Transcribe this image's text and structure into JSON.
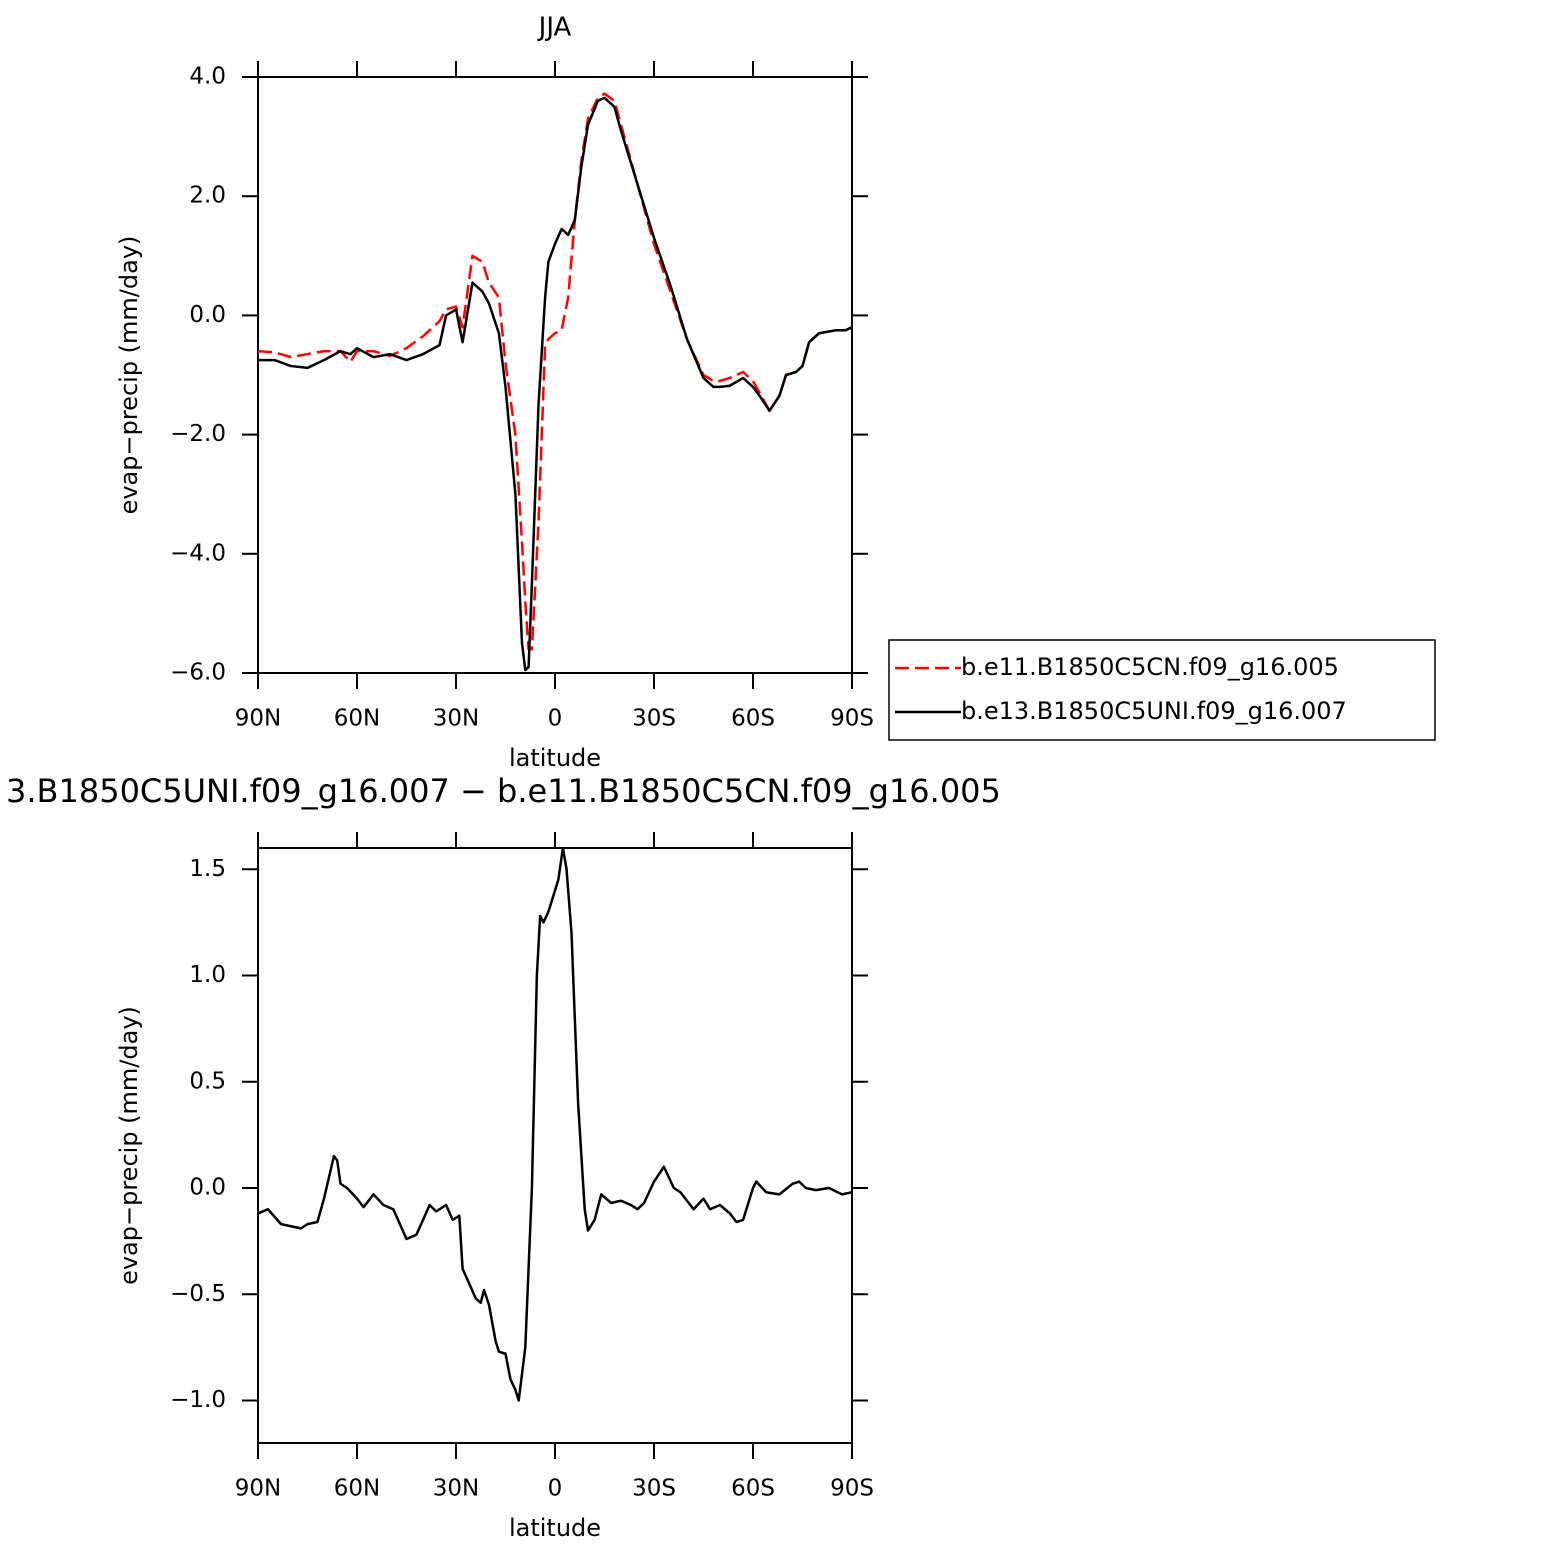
{
  "chart_data": [
    {
      "type": "line",
      "title": "JJA",
      "xlabel": "latitude",
      "ylabel": "evap−precip (mm/day)",
      "xlim": [
        90,
        -90
      ],
      "ylim": [
        -6,
        4
      ],
      "xticks": [
        {
          "value": 90,
          "label": "90N"
        },
        {
          "value": 60,
          "label": "60N"
        },
        {
          "value": 30,
          "label": "30N"
        },
        0,
        {
          "value": -30,
          "label": "30S"
        },
        {
          "value": -60,
          "label": "60S"
        },
        {
          "value": -90,
          "label": "90S"
        }
      ],
      "yticks": [
        {
          "value": 4,
          "label": "4.0"
        },
        {
          "value": 2,
          "label": "2.0"
        },
        {
          "value": 0,
          "label": "0.0"
        },
        {
          "value": -2,
          "label": "−2.0"
        },
        {
          "value": -4,
          "label": "−4.0"
        },
        {
          "value": -6,
          "label": "−6.0"
        }
      ],
      "legend": "right",
      "x": [
        90,
        85,
        80,
        75,
        70,
        65,
        62,
        60,
        55,
        50,
        45,
        40,
        35,
        33,
        30,
        28,
        25,
        22,
        20,
        17,
        15,
        12,
        10,
        9,
        8,
        7,
        5,
        3,
        2,
        0,
        -2,
        -4,
        -6,
        -8,
        -10,
        -13,
        -15,
        -18,
        -20,
        -25,
        -30,
        -35,
        -40,
        -45,
        -48,
        -50,
        -53,
        -57,
        -60,
        -62,
        -65,
        -68,
        -70,
        -73,
        -75,
        -77,
        -80,
        -85,
        -88,
        -90
      ],
      "series": [
        {
          "name": "b.e11.B1850C5CN.f09_g16.005",
          "color": "#ff0000",
          "line_style": "dashed",
          "values": [
            -0.6,
            -0.62,
            -0.7,
            -0.65,
            -0.6,
            -0.6,
            -0.78,
            -0.6,
            -0.6,
            -0.68,
            -0.55,
            -0.35,
            -0.1,
            0.1,
            0.15,
            -0.2,
            1.0,
            0.9,
            0.55,
            0.3,
            -0.8,
            -2.0,
            -3.8,
            -4.8,
            -5.6,
            -5.6,
            -3.5,
            -0.5,
            -0.4,
            -0.3,
            -0.25,
            0.3,
            1.6,
            2.6,
            3.3,
            3.65,
            3.72,
            3.6,
            3.2,
            2.2,
            1.2,
            0.4,
            -0.4,
            -1.0,
            -1.1,
            -1.1,
            -1.05,
            -0.95,
            -1.1,
            -1.3,
            -1.6,
            -1.35,
            -1.0,
            -0.95,
            -0.85,
            -0.45,
            -0.3,
            -0.25,
            -0.25,
            -0.2
          ]
        },
        {
          "name": "b.e13.B1850C5UNI.f09_g16.007",
          "color": "#000000",
          "line_style": "solid",
          "values": [
            -0.75,
            -0.75,
            -0.85,
            -0.88,
            -0.75,
            -0.6,
            -0.65,
            -0.55,
            -0.7,
            -0.65,
            -0.75,
            -0.65,
            -0.5,
            0.0,
            0.1,
            -0.45,
            0.55,
            0.4,
            0.2,
            -0.3,
            -1.2,
            -3.0,
            -5.5,
            -5.95,
            -5.9,
            -4.5,
            -1.5,
            0.3,
            0.9,
            1.2,
            1.45,
            1.35,
            1.6,
            2.5,
            3.2,
            3.6,
            3.65,
            3.5,
            3.1,
            2.2,
            1.3,
            0.5,
            -0.4,
            -1.05,
            -1.2,
            -1.2,
            -1.18,
            -1.05,
            -1.2,
            -1.35,
            -1.6,
            -1.35,
            -1.0,
            -0.95,
            -0.85,
            -0.45,
            -0.3,
            -0.25,
            -0.25,
            -0.2
          ]
        }
      ]
    },
    {
      "type": "line",
      "title": "3.B1850C5UNI.f09_g16.007 − b.e11.B1850C5CN.f09_g16.005",
      "xlabel": "latitude",
      "ylabel": "evap−precip (mm/day)",
      "xlim": [
        90,
        -90
      ],
      "ylim": [
        -1.2,
        1.6
      ],
      "xticks": [
        {
          "value": 90,
          "label": "90N"
        },
        {
          "value": 60,
          "label": "60N"
        },
        {
          "value": 30,
          "label": "30N"
        },
        0,
        {
          "value": -30,
          "label": "30S"
        },
        {
          "value": -60,
          "label": "60S"
        },
        {
          "value": -90,
          "label": "90S"
        }
      ],
      "yticks": [
        1.5,
        {
          "value": 1,
          "label": "1.0"
        },
        0.5,
        {
          "value": 0,
          "label": "0.0"
        },
        {
          "value": -0.5,
          "label": "−0.5"
        },
        {
          "value": -1,
          "label": "−1.0"
        }
      ],
      "x": [
        90,
        87,
        83,
        80,
        77,
        75,
        72,
        70,
        67,
        66,
        65,
        63,
        60,
        58,
        55,
        52,
        49,
        45,
        42,
        40,
        38,
        36,
        33,
        31,
        29,
        28,
        26,
        24,
        22.5,
        21.5,
        20,
        18,
        17,
        15,
        13.5,
        12,
        11,
        9,
        7,
        5.5,
        4.5,
        3.5,
        2,
        0,
        -1,
        -2.4,
        -3.5,
        -5,
        -7,
        -9,
        -10,
        -12,
        -14,
        -17,
        -20,
        -23,
        -25,
        -27,
        -30,
        -33,
        -36,
        -38,
        -42,
        -45,
        -47,
        -50,
        -53,
        -55,
        -57,
        -60,
        -61,
        -64,
        -68,
        -72,
        -74,
        -76,
        -79,
        -83,
        -87,
        -90
      ],
      "series": [
        {
          "name": null,
          "color": "#000000",
          "line_style": "solid",
          "values": [
            -0.12,
            -0.1,
            -0.17,
            -0.18,
            -0.19,
            -0.17,
            -0.16,
            -0.05,
            0.15,
            0.13,
            0.02,
            0.0,
            -0.05,
            -0.09,
            -0.03,
            -0.08,
            -0.1,
            -0.24,
            -0.22,
            -0.15,
            -0.08,
            -0.11,
            -0.08,
            -0.15,
            -0.13,
            -0.38,
            -0.45,
            -0.52,
            -0.54,
            -0.48,
            -0.55,
            -0.72,
            -0.77,
            -0.78,
            -0.9,
            -0.95,
            -1.0,
            -0.75,
            0.0,
            1.0,
            1.28,
            1.25,
            1.3,
            1.4,
            1.45,
            1.6,
            1.5,
            1.2,
            0.4,
            -0.1,
            -0.2,
            -0.15,
            -0.03,
            -0.07,
            -0.06,
            -0.08,
            -0.1,
            -0.07,
            0.03,
            0.1,
            0.0,
            -0.02,
            -0.1,
            -0.05,
            -0.1,
            -0.08,
            -0.12,
            -0.16,
            -0.15,
            0.0,
            0.03,
            -0.02,
            -0.03,
            0.02,
            0.03,
            0.0,
            -0.01,
            0.0,
            -0.03,
            -0.02
          ]
        }
      ]
    }
  ]
}
